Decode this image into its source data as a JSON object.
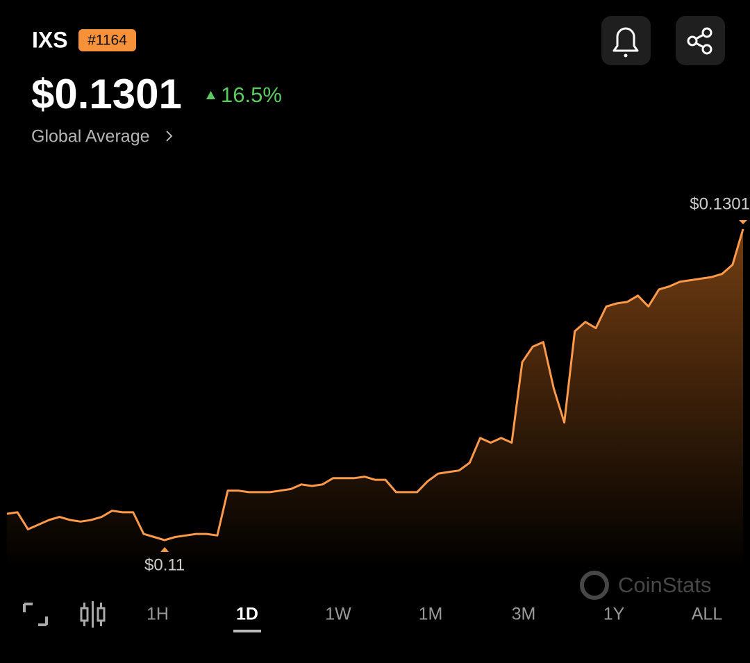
{
  "header": {
    "symbol": "IXS",
    "rank": "#1164",
    "price": "$0.1301",
    "change": "16.5%",
    "source": "Global Average"
  },
  "chart_data": {
    "type": "line",
    "color": "#ff9a4a",
    "values": [
      0.1117,
      0.1118,
      0.1107,
      0.111,
      0.1113,
      0.1115,
      0.1113,
      0.1112,
      0.1113,
      0.1115,
      0.1119,
      0.1118,
      0.1118,
      0.1104,
      0.1102,
      0.11,
      0.1102,
      0.1103,
      0.1104,
      0.1104,
      0.1103,
      0.1132,
      0.1132,
      0.1131,
      0.1131,
      0.1131,
      0.1132,
      0.1133,
      0.1136,
      0.1135,
      0.1136,
      0.114,
      0.114,
      0.114,
      0.1141,
      0.1139,
      0.1139,
      0.1131,
      0.1131,
      0.1131,
      0.1138,
      0.1143,
      0.1144,
      0.1145,
      0.115,
      0.1166,
      0.1163,
      0.1166,
      0.1163,
      0.1215,
      0.1225,
      0.1228,
      0.1198,
      0.1176,
      0.1235,
      0.1241,
      0.1237,
      0.1251,
      0.1253,
      0.1254,
      0.1258,
      0.1251,
      0.1262,
      0.1264,
      0.1267,
      0.1268,
      0.1269,
      0.127,
      0.1272,
      0.1278,
      0.1301
    ],
    "min_label": "$0.11",
    "max_label": "$0.1301"
  },
  "watermark": "CoinStats",
  "ranges": [
    "1H",
    "1D",
    "1W",
    "1M",
    "3M",
    "1Y",
    "ALL"
  ],
  "selected_range": "1D"
}
